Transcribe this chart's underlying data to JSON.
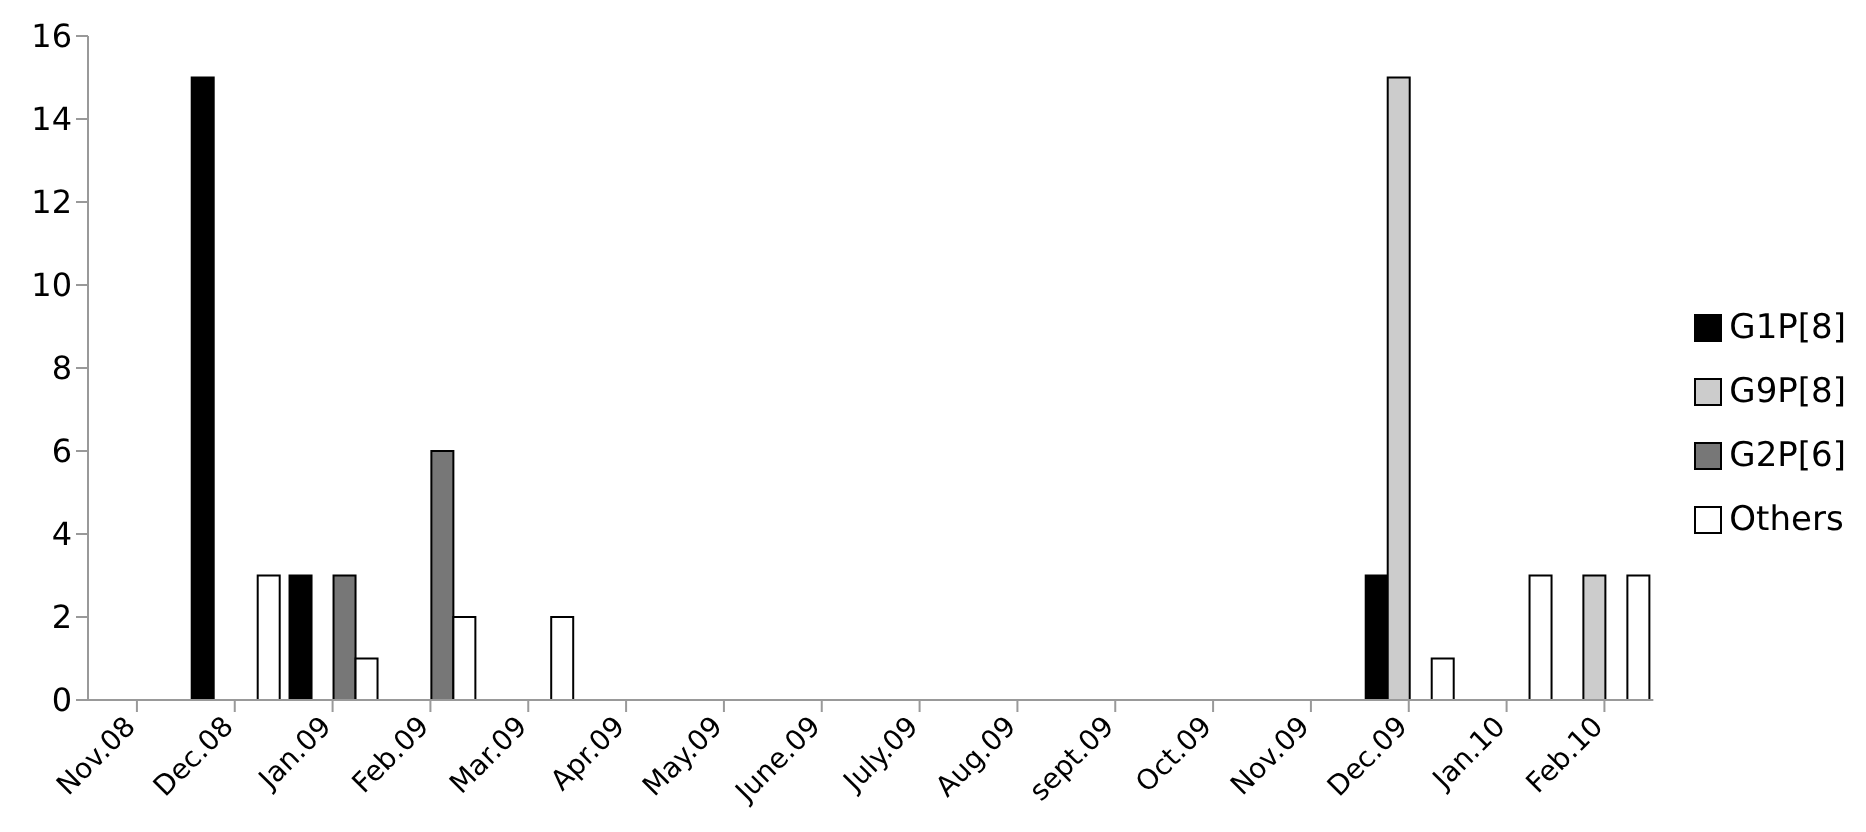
{
  "chart_data": {
    "type": "bar",
    "categories": [
      "Nov.08",
      "Dec.08",
      "Jan.09",
      "Feb.09",
      "Mar.09",
      "Apr.09",
      "May.09",
      "June.09",
      "July.09",
      "Aug.09",
      "sept.09",
      "Oct.09",
      "Nov.09",
      "Dec.09",
      "Jan.10",
      "Feb.10"
    ],
    "series": [
      {
        "name": "G1P[8]",
        "color": "#000000",
        "values": [
          0,
          15,
          3,
          0,
          0,
          0,
          0,
          0,
          0,
          0,
          0,
          0,
          0,
          3,
          0,
          0
        ]
      },
      {
        "name": "G9P[8]",
        "color": "#cccccc",
        "values": [
          0,
          0,
          0,
          0,
          0,
          0,
          0,
          0,
          0,
          0,
          0,
          0,
          0,
          15,
          0,
          3
        ]
      },
      {
        "name": "G2P[6]",
        "color": "#777777",
        "values": [
          0,
          0,
          3,
          6,
          0,
          0,
          0,
          0,
          0,
          0,
          0,
          0,
          0,
          0,
          0,
          0
        ]
      },
      {
        "name": "Others",
        "color": "#ffffff",
        "values": [
          0,
          3,
          1,
          2,
          2,
          0,
          0,
          0,
          0,
          0,
          0,
          0,
          0,
          1,
          3,
          3
        ]
      }
    ],
    "ylim": [
      0,
      16
    ],
    "yticks": [
      0,
      2,
      4,
      6,
      8,
      10,
      12,
      14,
      16
    ],
    "grid": false,
    "legend": "right"
  }
}
